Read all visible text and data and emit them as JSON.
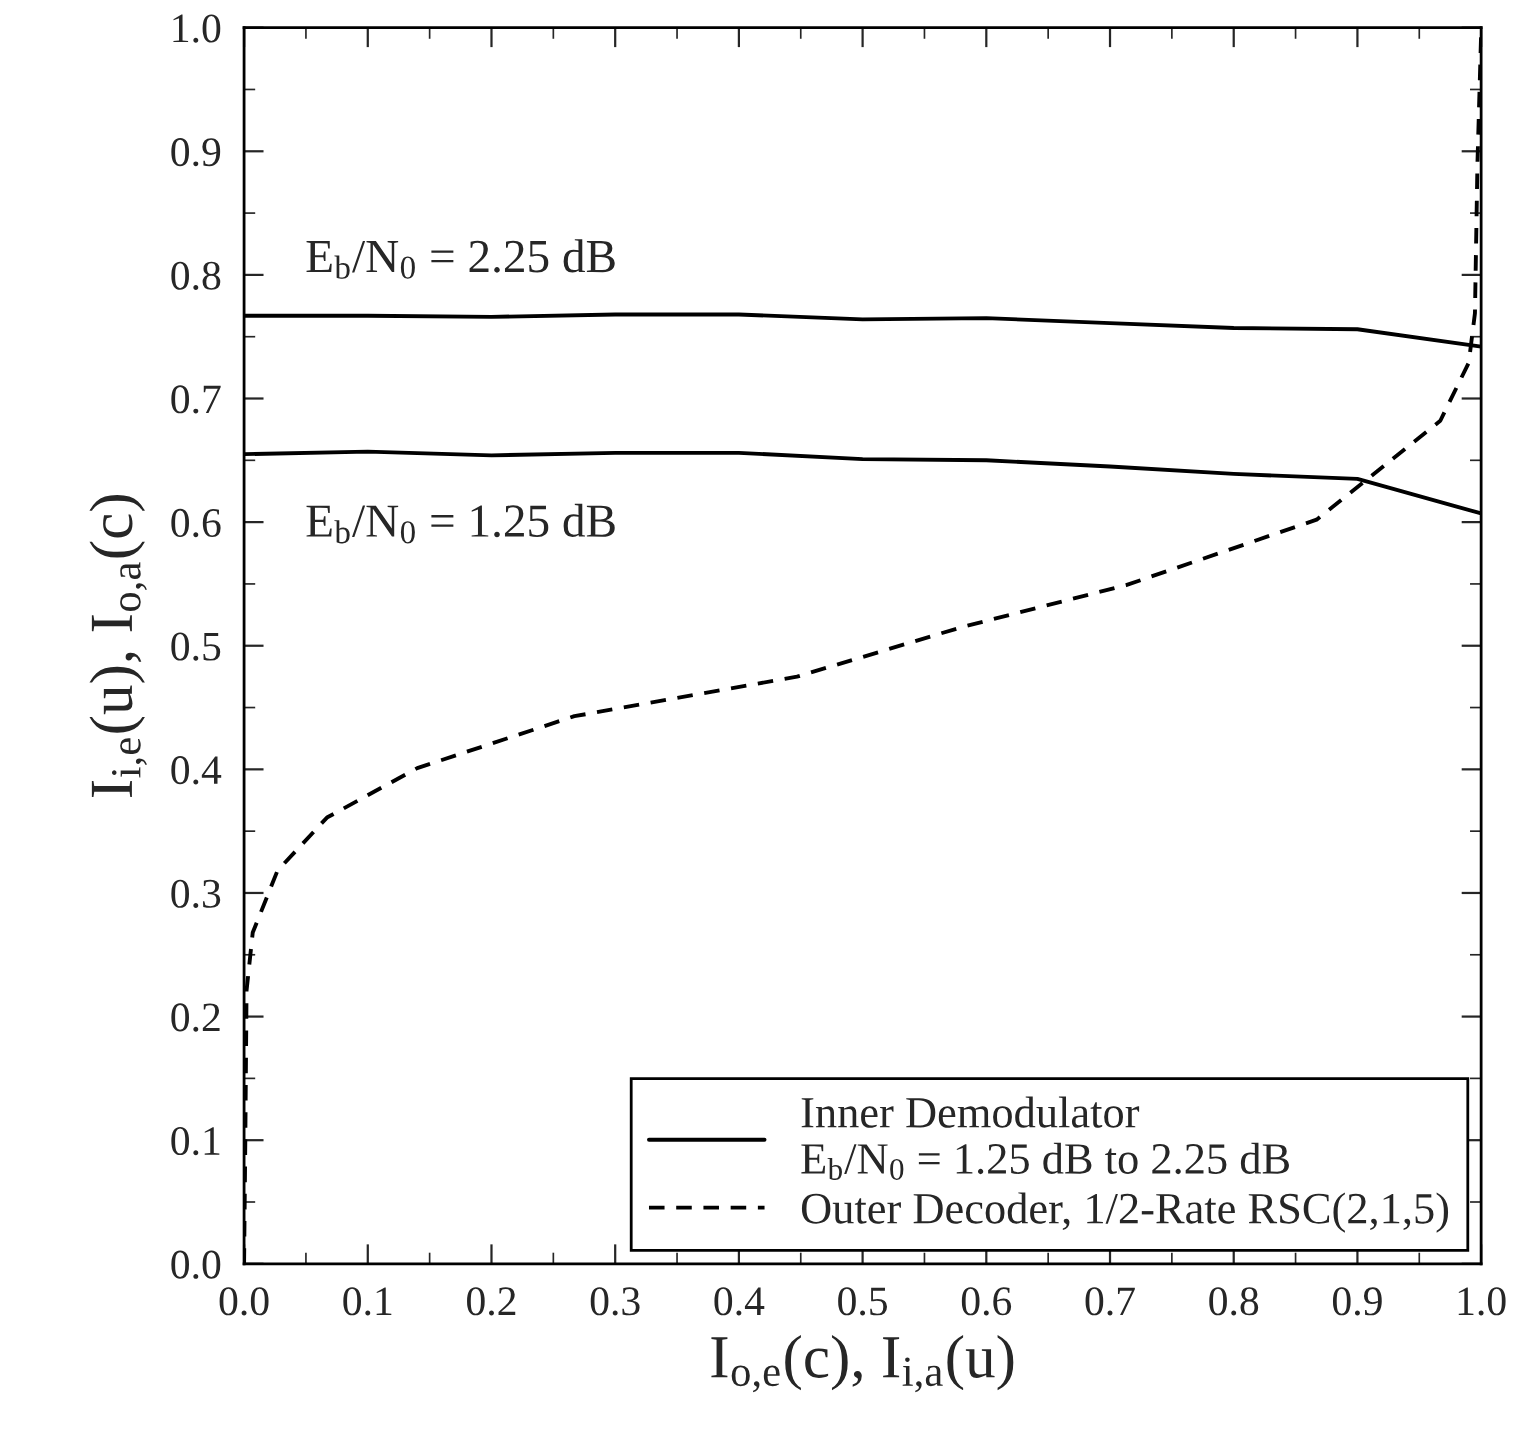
{
  "chart_data": {
    "type": "line",
    "xlabel": "I$_{o,e}$(c), I$_{i,a}$(u)",
    "ylabel": "I$_{i,e}$(u), I$_{o,a}$(c)",
    "xlim": [
      0.0,
      1.0
    ],
    "ylim": [
      0.0,
      1.0
    ],
    "xticks": [
      {
        "value": 0.0,
        "label": "0.0"
      },
      0.1,
      0.2,
      0.3,
      0.4,
      0.5,
      0.6,
      0.7,
      0.8,
      0.9,
      {
        "value": 1.0,
        "label": "1.0"
      }
    ],
    "yticks": [
      {
        "value": 0.0,
        "label": "0.0"
      },
      0.1,
      0.2,
      0.3,
      0.4,
      0.5,
      0.6,
      0.7,
      0.8,
      0.9,
      {
        "value": 1.0,
        "label": "1.0"
      }
    ],
    "grid": false,
    "legend": "bottom right",
    "marker": "none",
    "series": [
      {
        "name": "Inner Demodulator\nE$_{b}$/N$_{0}$ = 1.25 dB to 2.25 dB",
        "color": "#000000",
        "line_style": "solid",
        "x": [
          0.0,
          0.1,
          0.2,
          0.3,
          0.4,
          0.5,
          0.6,
          0.7,
          0.8,
          0.9,
          1.0
        ],
        "values": [
          0.767,
          0.767,
          0.766,
          0.768,
          0.768,
          0.764,
          0.765,
          0.761,
          0.757,
          0.756,
          0.742
        ]
      },
      {
        "color": "#000000",
        "line_style": "solid",
        "x": [
          0.0,
          0.1,
          0.2,
          0.3,
          0.4,
          0.5,
          0.6,
          0.7,
          0.8,
          0.9,
          1.0
        ],
        "values": [
          0.655,
          0.657,
          0.654,
          0.656,
          0.656,
          0.651,
          0.65,
          0.645,
          0.639,
          0.635,
          0.607
        ]
      },
      {
        "name": "Outer Decoder, 1/2-Rate RSC(2,1,5)",
        "color": "#000000",
        "line_style": "dashed",
        "x": [
          0.0,
          0.001,
          0.002,
          0.007,
          0.027,
          0.067,
          0.14,
          0.267,
          0.447,
          0.58,
          0.713,
          0.867,
          0.967,
          0.99,
          0.995,
          0.997,
          1.0
        ],
        "values": [
          0.0,
          0.1,
          0.221,
          0.268,
          0.318,
          0.361,
          0.401,
          0.443,
          0.475,
          0.515,
          0.549,
          0.602,
          0.682,
          0.729,
          0.769,
          0.889,
          0.995
        ]
      }
    ],
    "annotations": [
      "E$_{b}$/N$_{0}$ = 2.25 dB",
      "E$_{b}$/N$_{0}$ = 1.25 dB"
    ]
  }
}
